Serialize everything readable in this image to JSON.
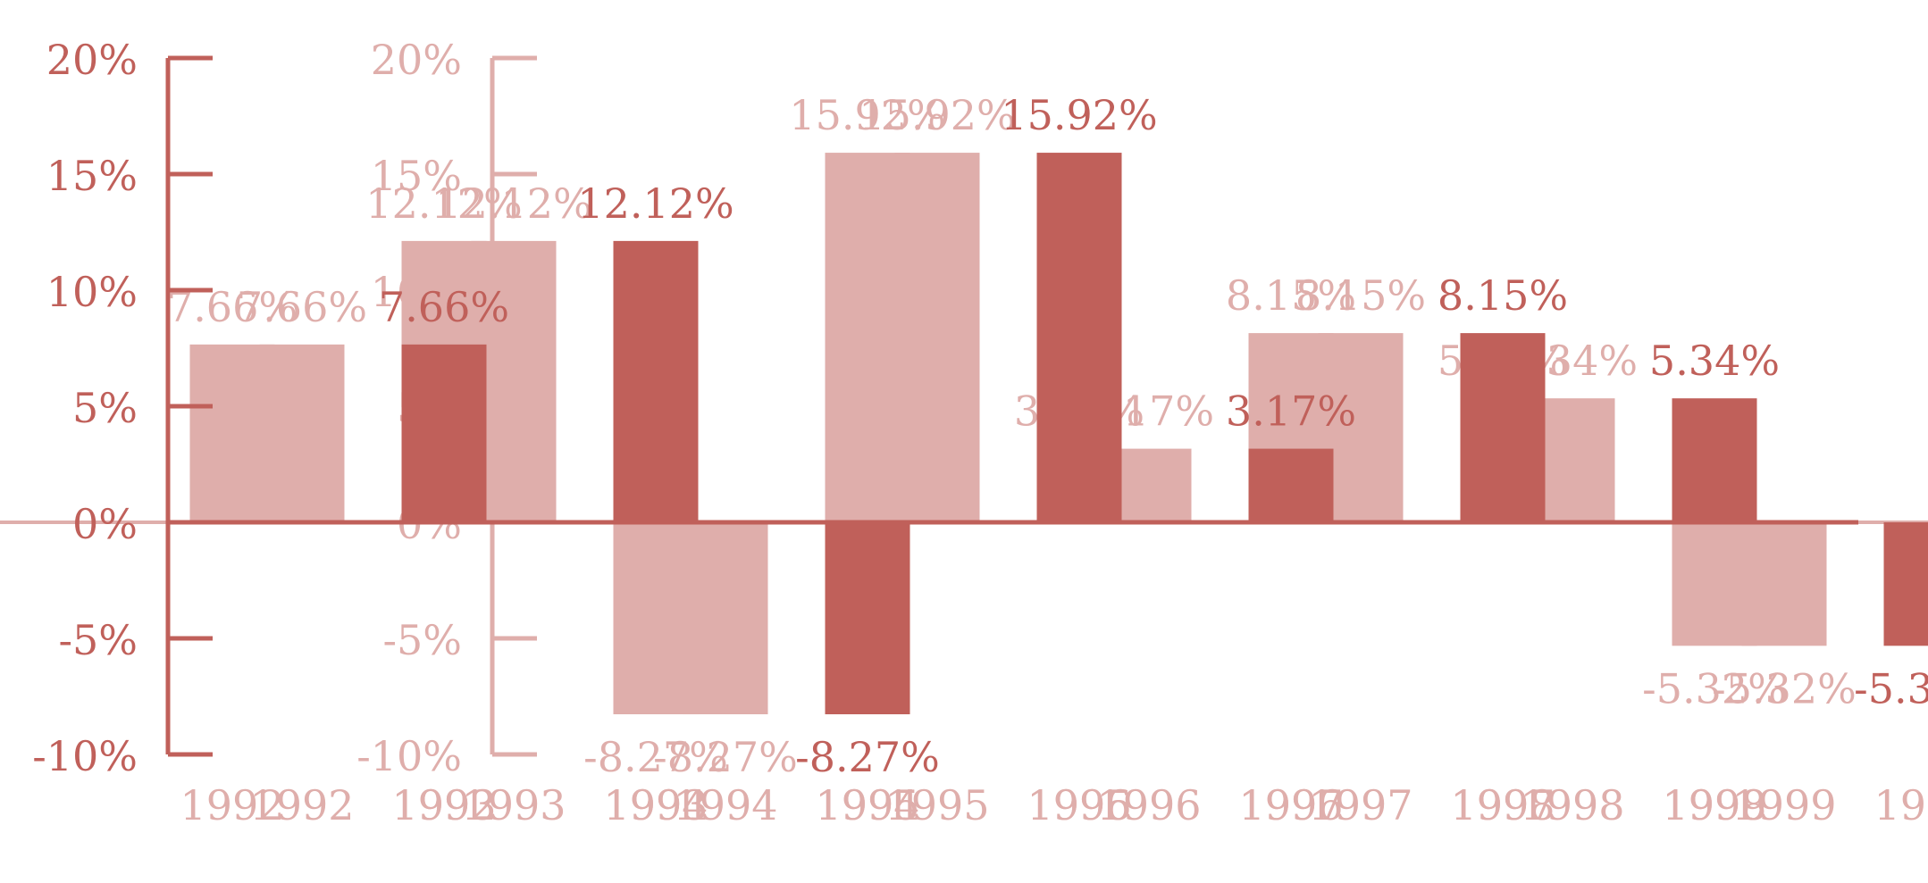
{
  "chart_data": {
    "type": "bar",
    "title": "",
    "xlabel": "",
    "ylabel": "",
    "ylim": [
      -10,
      20
    ],
    "yticks": [
      -10,
      -5,
      0,
      5,
      10,
      15,
      20
    ],
    "ytick_labels": [
      "-10%",
      "-5%",
      "0%",
      "5%",
      "10%",
      "15%",
      "20%"
    ],
    "grid": false,
    "value_label_suffix": "%",
    "colors": {
      "foreground_bar": "#c0605a",
      "ghost": "#dfaeab",
      "axis": "#c0605a"
    },
    "categories": [
      "1992",
      "1993",
      "1994",
      "1995",
      "1996",
      "1997",
      "1998",
      "1999"
    ],
    "values": [
      7.66,
      12.12,
      -8.27,
      15.92,
      3.17,
      8.15,
      5.34,
      -5.32
    ],
    "value_labels": [
      "7.66%",
      "12.12%",
      "-8.27%",
      "15.92%",
      "3.17%",
      "8.15%",
      "5.34%",
      "-5.32%"
    ]
  }
}
